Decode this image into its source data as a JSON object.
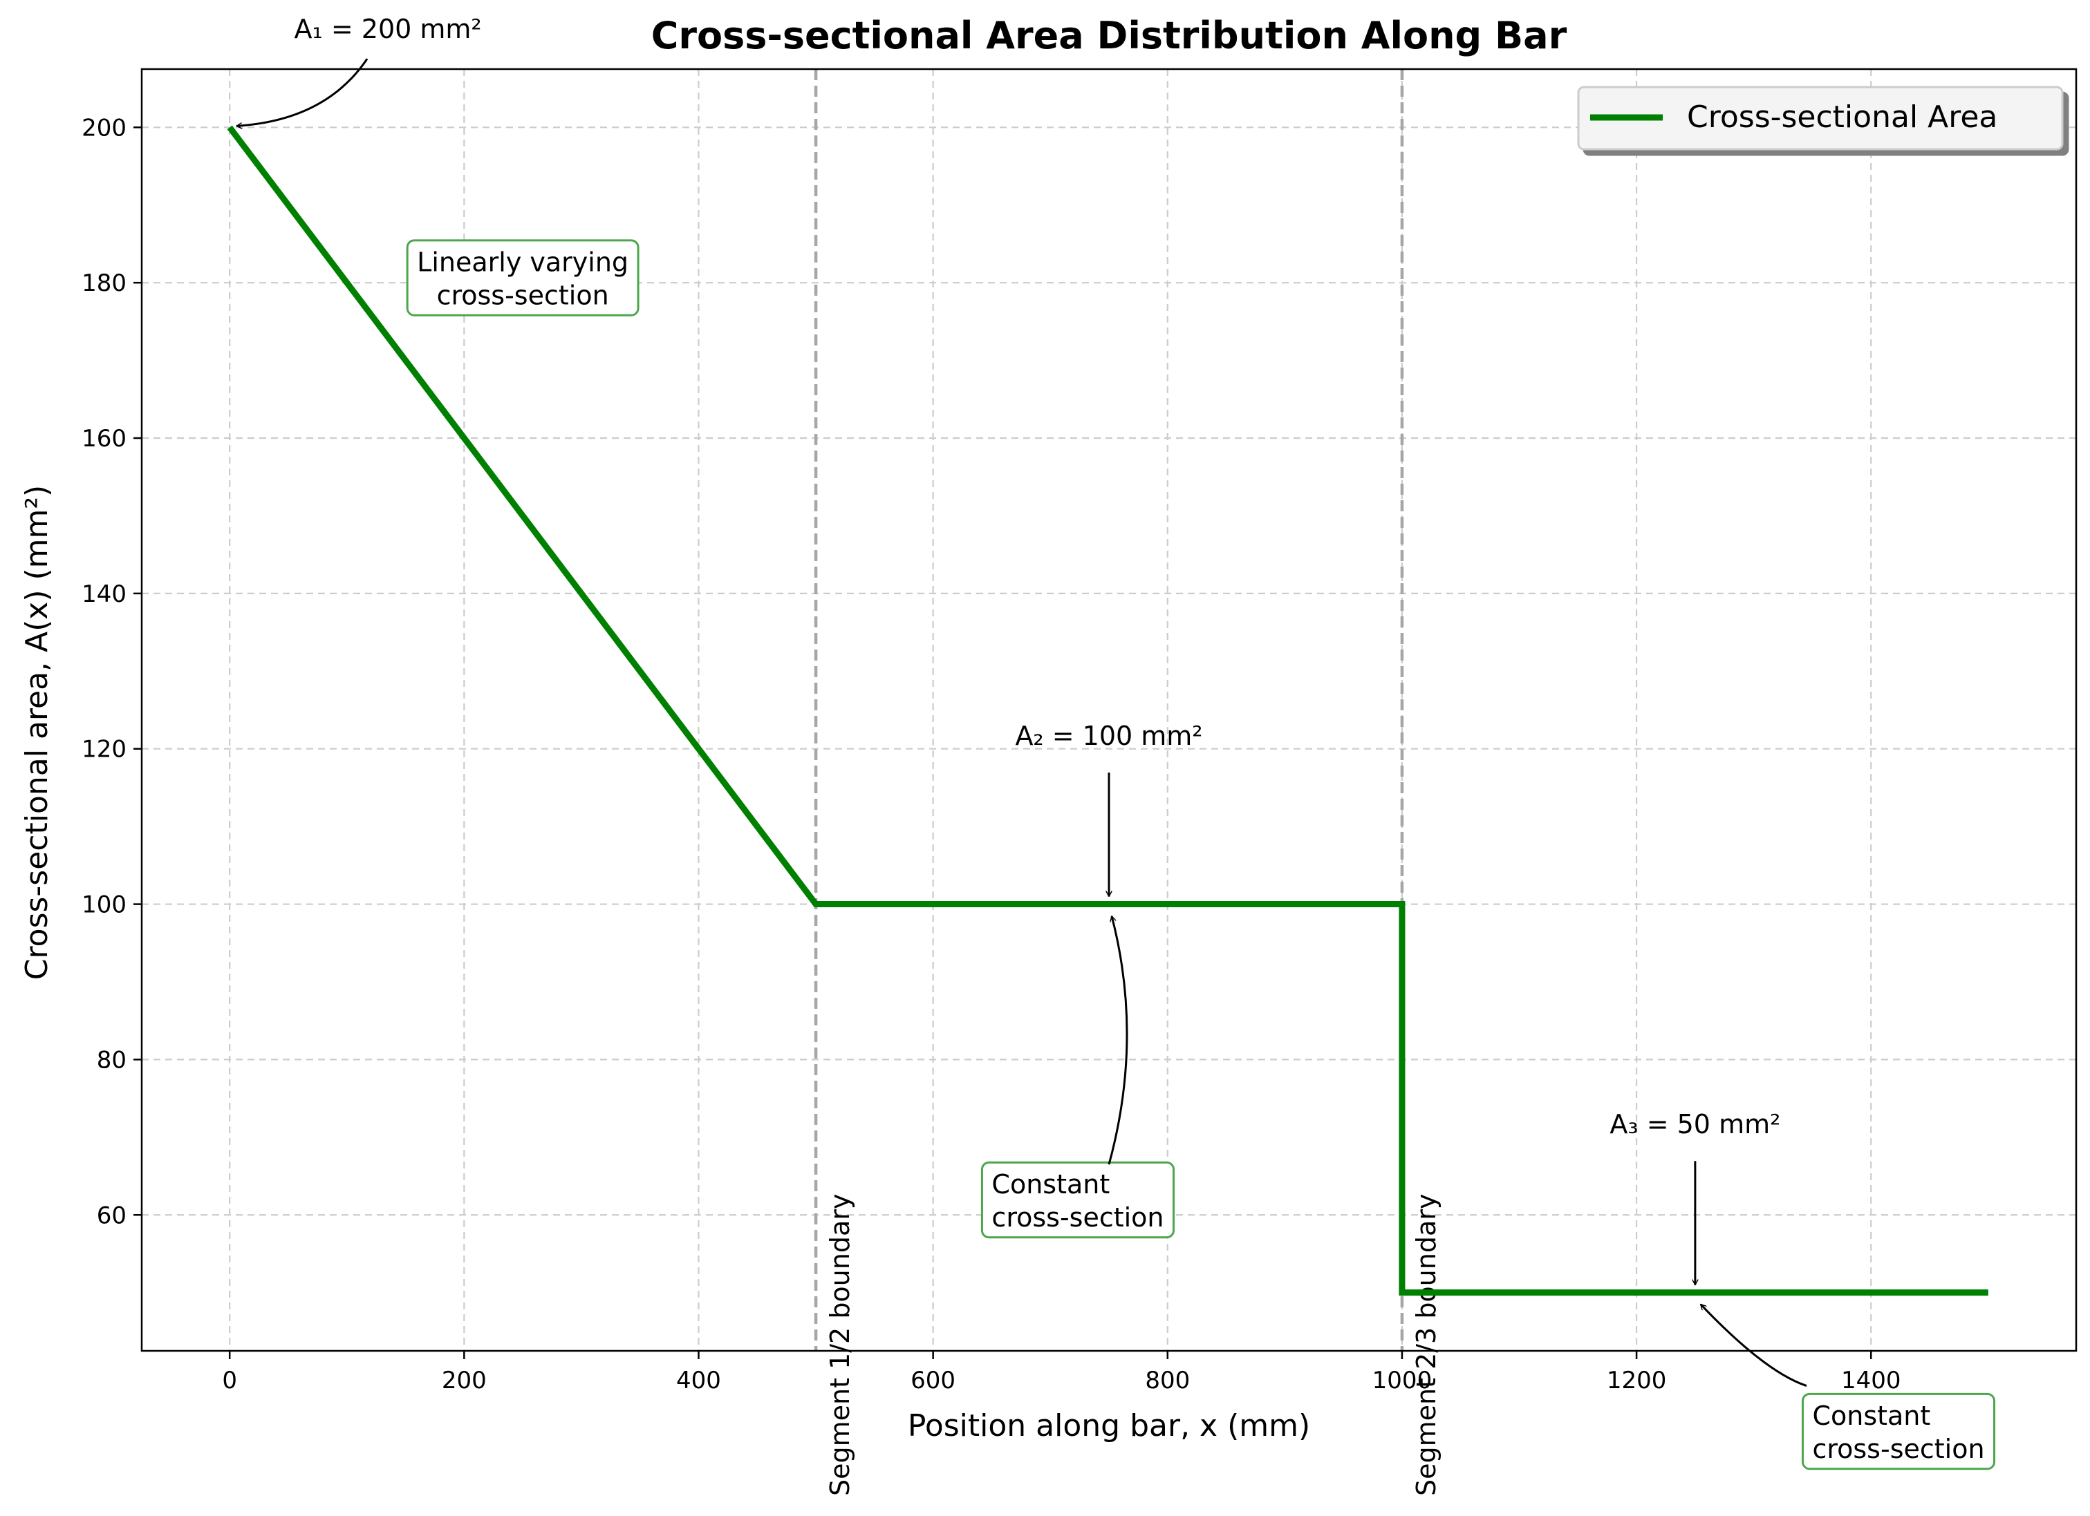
{
  "chart_data": {
    "type": "line",
    "title": "Cross-sectional Area Distribution Along Bar",
    "xlabel": "Position along bar, x (mm)",
    "ylabel": "Cross-sectional area, A(x) (mm²)",
    "xlim": [
      -75,
      1575
    ],
    "ylim": [
      42.5,
      207.5
    ],
    "xticks": [
      0,
      200,
      400,
      600,
      800,
      1000,
      1200,
      1400
    ],
    "yticks": [
      60,
      80,
      100,
      120,
      140,
      160,
      180,
      200
    ],
    "grid": true,
    "legend_position": "top-right",
    "series": [
      {
        "name": "Cross-sectional Area",
        "color": "#008000",
        "x": [
          0,
          500,
          1000,
          1000,
          1500
        ],
        "y": [
          200,
          100,
          100,
          50,
          50
        ]
      }
    ],
    "boundaries": [
      {
        "x": 500,
        "label": "Segment 1/2 boundary"
      },
      {
        "x": 1000,
        "label": "Segment 2/3 boundary"
      }
    ],
    "annotations": [
      {
        "text": "A₁ = 200 mm²",
        "target": [
          0,
          200
        ],
        "text_at": [
          135,
          211.5
        ],
        "curved": true
      },
      {
        "text": "A₂ = 100 mm²",
        "target": [
          750,
          101
        ],
        "text_at": [
          750,
          120.5
        ],
        "curved": false
      },
      {
        "text": "A₃ = 50 mm²",
        "target": [
          1250,
          51
        ],
        "text_at": [
          1250,
          70.5
        ],
        "curved": false
      }
    ],
    "callouts": [
      {
        "lines": [
          "Linearly varying",
          "cross-section"
        ],
        "at": [
          250,
          181.5
        ],
        "align": "center"
      },
      {
        "lines": [
          "Constant",
          "cross-section"
        ],
        "at": [
          650,
          62.8
        ],
        "align": "left",
        "target": [
          750,
          99
        ],
        "from": [
          750,
          66.5
        ]
      },
      {
        "lines": [
          "Constant",
          "cross-section"
        ],
        "at": [
          1350,
          33
        ],
        "align": "left",
        "target": [
          1250,
          49.2
        ],
        "from": [
          1345,
          38
        ]
      }
    ],
    "colors": {
      "line": "#008000",
      "boundary": "#a6a6a6",
      "grid": "#cccccc",
      "callout_border": "#4ca64c"
    }
  }
}
